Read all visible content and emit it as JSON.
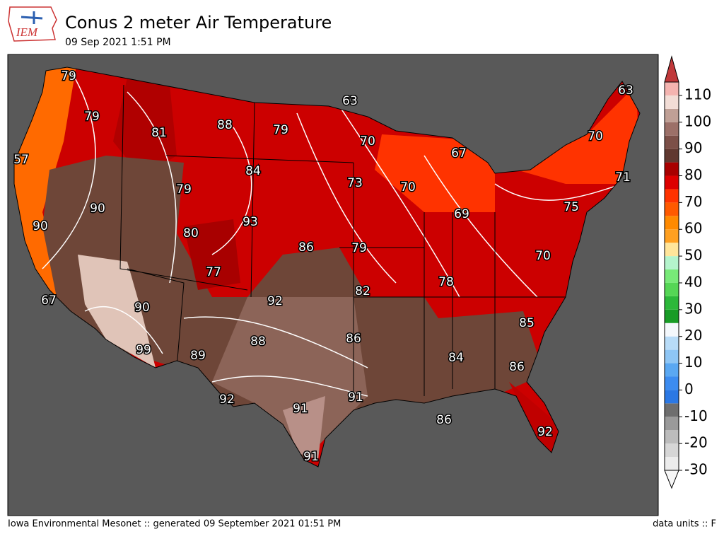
{
  "header": {
    "logo_text": "IEM",
    "title": "Conus 2 meter Air Temperature",
    "subtitle": "09 Sep 2021 1:51 PM"
  },
  "map": {
    "contour_labels": [
      79,
      79,
      81,
      88,
      79,
      63,
      63,
      70,
      67,
      70,
      57,
      84,
      79,
      73,
      70,
      71,
      90,
      93,
      69,
      75,
      90,
      80,
      86,
      79,
      70,
      77,
      78,
      82,
      67,
      92,
      90,
      85,
      86,
      88,
      99,
      89,
      84,
      86,
      92,
      91,
      91,
      86,
      92,
      91
    ],
    "colorbar": {
      "levels": [
        -30,
        -25,
        -20,
        -15,
        -10,
        -5,
        0,
        5,
        10,
        15,
        20,
        25,
        30,
        35,
        40,
        45,
        50,
        55,
        60,
        65,
        70,
        75,
        80,
        85,
        90,
        95,
        100,
        105,
        110,
        115
      ],
      "colors": [
        "#ececec",
        "#d6d6d6",
        "#bcbcbc",
        "#9a9a9a",
        "#6e6e6e",
        "#2b78e4",
        "#3c8cf0",
        "#5aa8f2",
        "#8ec6f5",
        "#b8dcf8",
        "#f4f8fc",
        "#189c26",
        "#2cb83a",
        "#55d655",
        "#78ea78",
        "#b4f4cc",
        "#ffe59a",
        "#ffa020",
        "#ff8a00",
        "#ff5a00",
        "#ff3300",
        "#dd0000",
        "#a80000",
        "#603830",
        "#7c5048",
        "#9c7068",
        "#c0a096",
        "#f2ddd6",
        "#f4b4b0"
      ],
      "under_color": "#f6f6f6",
      "over_color": "#c0383a",
      "ticks": [
        -30,
        -20,
        -10,
        0,
        10,
        20,
        30,
        40,
        50,
        60,
        70,
        80,
        90,
        100,
        110
      ]
    }
  },
  "footer": {
    "left": "Iowa Environmental Mesonet :: generated 09 September 2021 01:51 PM",
    "right": "data units :: F"
  }
}
